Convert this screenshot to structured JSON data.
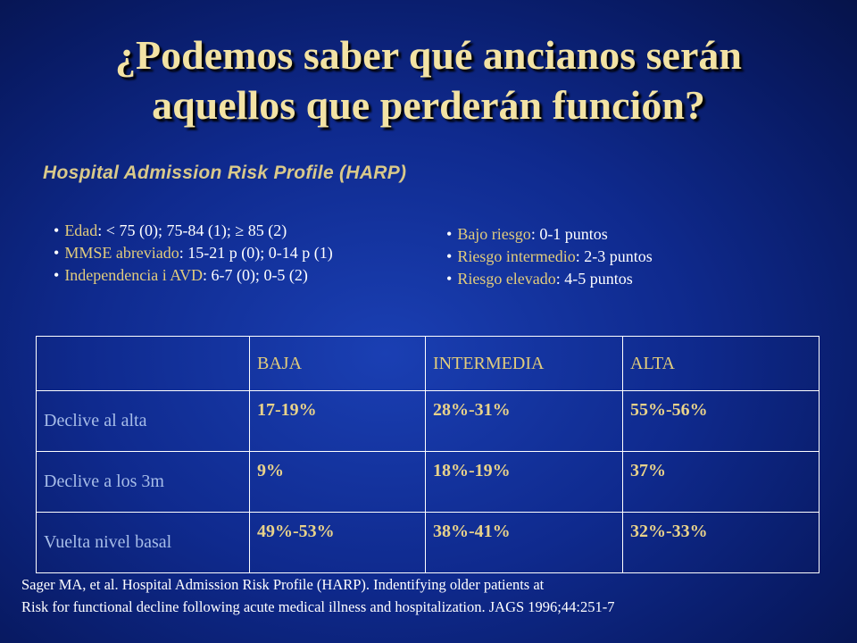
{
  "title": {
    "line1": "¿Podemos saber qué ancianos serán",
    "line2": "aquellos que perderán función?"
  },
  "subtitle": "Hospital Admission Risk Profile (HARP)",
  "criteria": [
    {
      "label": "Edad",
      "text": ": < 75 (0); 75-84 (1); ≥ 85 (2)"
    },
    {
      "label": "MMSE abreviado",
      "text": ": 15-21 p (0); 0-14 p (1)"
    },
    {
      "label": "Independencia i AVD",
      "text": ": 6-7 (0); 0-5 (2)"
    }
  ],
  "risk_levels": [
    {
      "label": "Bajo riesgo",
      "text": ": 0-1 puntos"
    },
    {
      "label": "Riesgo intermedio",
      "text": ": 2-3 puntos"
    },
    {
      "label": "Riesgo elevado",
      "text": ": 4-5 puntos"
    }
  ],
  "table": {
    "columns": [
      "",
      "BAJA",
      "INTERMEDIA",
      "ALTA"
    ],
    "rows": [
      {
        "label": "Declive al alta",
        "values": [
          "17-19%",
          "28%-31%",
          "55%-56%"
        ]
      },
      {
        "label": "Declive a los 3m",
        "values": [
          "9%",
          "18%-19%",
          "37%"
        ]
      },
      {
        "label": "Vuelta nivel basal",
        "values": [
          "49%-53%",
          "38%-41%",
          "32%-33%"
        ]
      }
    ]
  },
  "reference": {
    "line1": "Sager MA, et al. Hospital Admission Risk Profile (HARP). Indentifying older patients at",
    "line2": "Risk for functional decline following acute medical illness and hospitalization. JAGS 1996;44:251-7"
  }
}
